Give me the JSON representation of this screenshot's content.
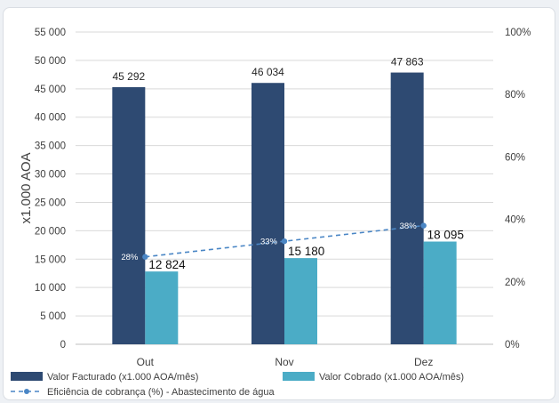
{
  "chart_data": {
    "type": "bar",
    "categories": [
      "Out",
      "Nov",
      "Dez"
    ],
    "series": [
      {
        "name": "Valor Facturado (x1.000 AOA/mês)",
        "values": [
          45292,
          46034,
          47863
        ],
        "labels": [
          "45 292",
          "46 034",
          "47 863"
        ],
        "color": "#2e4a72",
        "axis": "left"
      },
      {
        "name": "Valor Cobrado (x1.000 AOA/mês)",
        "values": [
          12824,
          15180,
          18095
        ],
        "labels": [
          "12 824",
          "15 180",
          "18 095"
        ],
        "color": "#4bacc6",
        "axis": "left"
      }
    ],
    "line_series": {
      "name": "Eficiência de cobrança (%) - Abastecimento de água",
      "values": [
        28,
        33,
        38
      ],
      "labels": [
        "28%",
        "33%",
        "38%"
      ],
      "color": "#4a86c5",
      "style": "dashed",
      "axis": "right"
    },
    "ylabel": "x1.000 AOA",
    "ylim": [
      0,
      55000
    ],
    "yticks": [
      0,
      5000,
      10000,
      15000,
      20000,
      25000,
      30000,
      35000,
      40000,
      45000,
      50000,
      55000
    ],
    "ytick_labels": [
      "0",
      "5 000",
      "10 000",
      "15 000",
      "20 000",
      "25 000",
      "30 000",
      "35 000",
      "40 000",
      "45 000",
      "50 000",
      "55 000"
    ],
    "y2lim": [
      0,
      100
    ],
    "y2ticks": [
      0,
      20,
      40,
      60,
      80,
      100
    ],
    "y2tick_labels": [
      "0%",
      "20%",
      "40%",
      "60%",
      "80%",
      "100%"
    ],
    "grid": true,
    "legend_position": "bottom"
  }
}
